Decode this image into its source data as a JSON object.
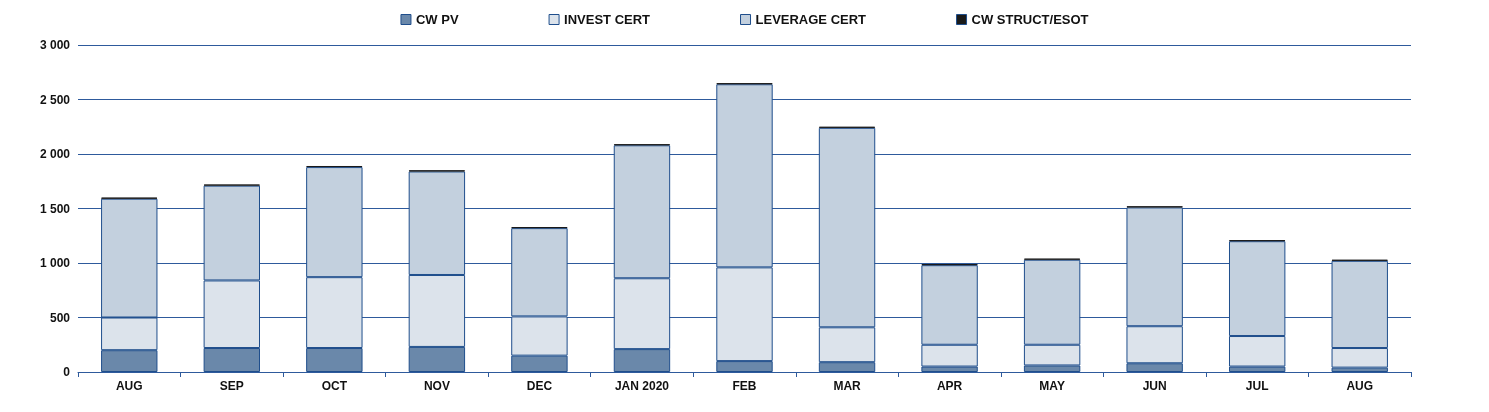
{
  "chart_data": {
    "type": "bar",
    "stacked": true,
    "categories": [
      "AUG",
      "SEP",
      "OCT",
      "NOV",
      "DEC",
      "JAN 2020",
      "FEB",
      "MAR",
      "APR",
      "MAY",
      "JUN",
      "JUL",
      "AUG"
    ],
    "series": [
      {
        "name": "CW PV",
        "color": "#6a88aa",
        "values": [
          200,
          220,
          220,
          230,
          150,
          210,
          100,
          90,
          50,
          60,
          80,
          50,
          40
        ]
      },
      {
        "name": "INVEST CERT",
        "color": "#dce3eb",
        "values": [
          300,
          620,
          650,
          660,
          360,
          650,
          860,
          320,
          200,
          190,
          340,
          280,
          180
        ]
      },
      {
        "name": "LEVERAGE CERT",
        "color": "#c3d0de",
        "values": [
          1090,
          870,
          1010,
          950,
          810,
          1220,
          1680,
          1830,
          730,
          780,
          1090,
          870,
          800
        ]
      },
      {
        "name": "CW STRUCT/ESOT",
        "color": "#1a1a1a",
        "values": [
          10,
          10,
          10,
          10,
          10,
          10,
          10,
          10,
          10,
          10,
          10,
          10,
          10
        ]
      }
    ],
    "ylim": [
      0,
      3000
    ],
    "yticks": [
      {
        "value": 0,
        "label": "0"
      },
      {
        "value": 500,
        "label": "500"
      },
      {
        "value": 1000,
        "label": "1 000"
      },
      {
        "value": 1500,
        "label": "1 500"
      },
      {
        "value": 2000,
        "label": "2 000"
      },
      {
        "value": 2500,
        "label": "2 500"
      },
      {
        "value": 3000,
        "label": "3 000"
      }
    ],
    "grid": "y",
    "legend": "top"
  }
}
